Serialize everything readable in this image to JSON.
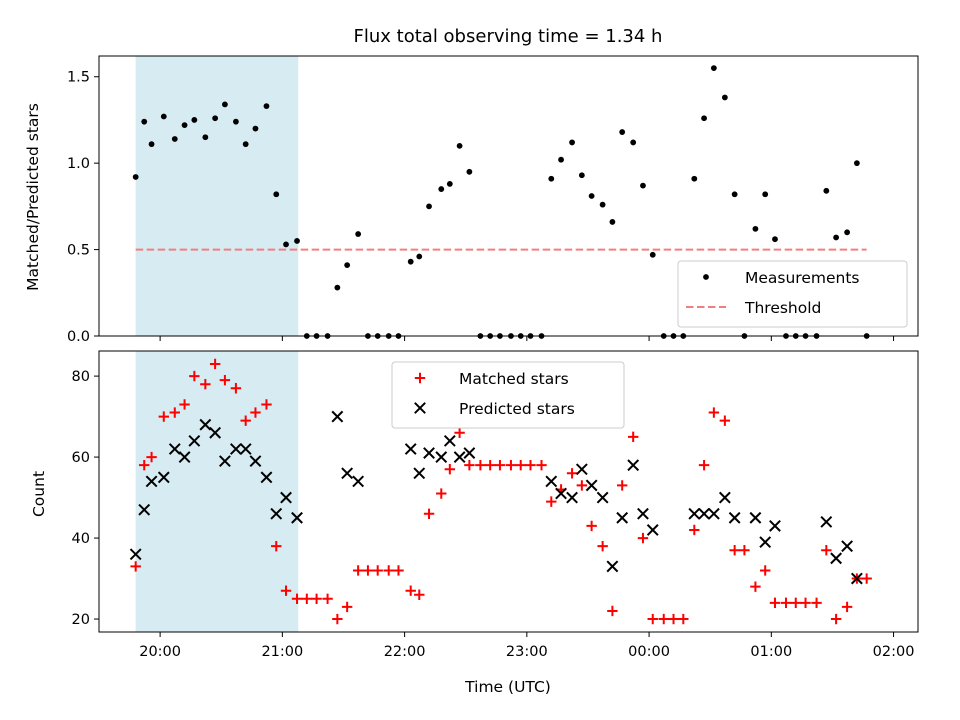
{
  "chart_data": {
    "title": "Flux total observing time = 1.34 h",
    "xlabel": "Time (UTC)",
    "x_unit": "hours UTC since 00:00 of the first night (values above 24 are after midnight)",
    "xlim": [
      19.5,
      26.2
    ],
    "xticks": [
      {
        "value": 20,
        "label": "20:00"
      },
      {
        "value": 21,
        "label": "21:00"
      },
      {
        "value": 22,
        "label": "22:00"
      },
      {
        "value": 23,
        "label": "23:00"
      },
      {
        "value": 24,
        "label": "00:00"
      },
      {
        "value": 25,
        "label": "01:00"
      },
      {
        "value": 26,
        "label": "02:00"
      }
    ],
    "highlight_span": {
      "x0": 19.8,
      "x1": 21.13,
      "color": "#add8e6"
    },
    "panels": [
      {
        "id": "ratio",
        "type": "scatter",
        "ylabel": "Matched/Predicted stars",
        "ylim": [
          0,
          1.62
        ],
        "yticks": [
          {
            "value": 0.0,
            "label": "0.0"
          },
          {
            "value": 0.5,
            "label": "0.5"
          },
          {
            "value": 1.0,
            "label": "1.0"
          },
          {
            "value": 1.5,
            "label": "1.5"
          }
        ],
        "legend_position": "lower-right",
        "series": [
          {
            "name": "Measurements",
            "marker": "dot",
            "color": "#000000",
            "points": [
              [
                19.8,
                0.92
              ],
              [
                19.87,
                1.24
              ],
              [
                19.93,
                1.11
              ],
              [
                20.03,
                1.27
              ],
              [
                20.12,
                1.14
              ],
              [
                20.2,
                1.22
              ],
              [
                20.28,
                1.25
              ],
              [
                20.37,
                1.15
              ],
              [
                20.45,
                1.26
              ],
              [
                20.53,
                1.34
              ],
              [
                20.62,
                1.24
              ],
              [
                20.7,
                1.11
              ],
              [
                20.78,
                1.2
              ],
              [
                20.87,
                1.33
              ],
              [
                20.95,
                0.82
              ],
              [
                21.03,
                0.53
              ],
              [
                21.12,
                0.55
              ],
              [
                21.2,
                0.0
              ],
              [
                21.28,
                0.0
              ],
              [
                21.37,
                0.0
              ],
              [
                21.45,
                0.28
              ],
              [
                21.53,
                0.41
              ],
              [
                21.62,
                0.59
              ],
              [
                21.7,
                0.0
              ],
              [
                21.78,
                0.0
              ],
              [
                21.87,
                0.0
              ],
              [
                21.95,
                0.0
              ],
              [
                22.05,
                0.43
              ],
              [
                22.12,
                0.46
              ],
              [
                22.2,
                0.75
              ],
              [
                22.3,
                0.85
              ],
              [
                22.37,
                0.88
              ],
              [
                22.45,
                1.1
              ],
              [
                22.53,
                0.95
              ],
              [
                22.62,
                0.0
              ],
              [
                22.7,
                0.0
              ],
              [
                22.78,
                0.0
              ],
              [
                22.87,
                0.0
              ],
              [
                22.95,
                0.0
              ],
              [
                23.03,
                0.0
              ],
              [
                23.12,
                0.0
              ],
              [
                23.2,
                0.91
              ],
              [
                23.28,
                1.02
              ],
              [
                23.37,
                1.12
              ],
              [
                23.45,
                0.93
              ],
              [
                23.53,
                0.81
              ],
              [
                23.62,
                0.76
              ],
              [
                23.7,
                0.66
              ],
              [
                23.78,
                1.18
              ],
              [
                23.87,
                1.12
              ],
              [
                23.95,
                0.87
              ],
              [
                24.03,
                0.47
              ],
              [
                24.12,
                0.0
              ],
              [
                24.2,
                0.0
              ],
              [
                24.28,
                0.0
              ],
              [
                24.37,
                0.91
              ],
              [
                24.45,
                1.26
              ],
              [
                24.53,
                1.55
              ],
              [
                24.62,
                1.38
              ],
              [
                24.7,
                0.82
              ],
              [
                24.78,
                0.0
              ],
              [
                24.87,
                0.62
              ],
              [
                24.95,
                0.82
              ],
              [
                25.03,
                0.56
              ],
              [
                25.12,
                0.0
              ],
              [
                25.2,
                0.0
              ],
              [
                25.28,
                0.0
              ],
              [
                25.37,
                0.0
              ],
              [
                25.45,
                0.84
              ],
              [
                25.53,
                0.57
              ],
              [
                25.62,
                0.6
              ],
              [
                25.7,
                1.0
              ],
              [
                25.78,
                0.0
              ]
            ]
          },
          {
            "name": "Threshold",
            "marker": "dashed-line",
            "color": "#f08080",
            "value": 0.5,
            "x_range": [
              19.8,
              25.78
            ]
          }
        ]
      },
      {
        "id": "count",
        "type": "scatter",
        "ylabel": "Count",
        "ylim": [
          16.8,
          86.2
        ],
        "yticks": [
          {
            "value": 20,
            "label": "20"
          },
          {
            "value": 40,
            "label": "40"
          },
          {
            "value": 60,
            "label": "60"
          },
          {
            "value": 80,
            "label": "80"
          }
        ],
        "legend_position": "upper-center",
        "series": [
          {
            "name": "Matched stars",
            "marker": "plus",
            "color": "#ff0000",
            "points": [
              [
                19.8,
                33
              ],
              [
                19.87,
                58
              ],
              [
                19.93,
                60
              ],
              [
                20.03,
                70
              ],
              [
                20.12,
                71
              ],
              [
                20.2,
                73
              ],
              [
                20.28,
                80
              ],
              [
                20.37,
                78
              ],
              [
                20.45,
                83
              ],
              [
                20.53,
                79
              ],
              [
                20.62,
                77
              ],
              [
                20.7,
                69
              ],
              [
                20.78,
                71
              ],
              [
                20.87,
                73
              ],
              [
                20.95,
                38
              ],
              [
                21.03,
                27
              ],
              [
                21.12,
                25
              ],
              [
                21.2,
                25
              ],
              [
                21.28,
                25
              ],
              [
                21.37,
                25
              ],
              [
                21.45,
                20
              ],
              [
                21.53,
                23
              ],
              [
                21.62,
                32
              ],
              [
                21.7,
                32
              ],
              [
                21.78,
                32
              ],
              [
                21.87,
                32
              ],
              [
                21.95,
                32
              ],
              [
                22.05,
                27
              ],
              [
                22.12,
                26
              ],
              [
                22.2,
                46
              ],
              [
                22.3,
                51
              ],
              [
                22.37,
                57
              ],
              [
                22.45,
                66
              ],
              [
                22.53,
                58
              ],
              [
                22.62,
                58
              ],
              [
                22.7,
                58
              ],
              [
                22.78,
                58
              ],
              [
                22.87,
                58
              ],
              [
                22.95,
                58
              ],
              [
                23.03,
                58
              ],
              [
                23.12,
                58
              ],
              [
                23.2,
                49
              ],
              [
                23.28,
                52
              ],
              [
                23.37,
                56
              ],
              [
                23.45,
                53
              ],
              [
                23.53,
                43
              ],
              [
                23.62,
                38
              ],
              [
                23.7,
                22
              ],
              [
                23.78,
                53
              ],
              [
                23.87,
                65
              ],
              [
                23.95,
                40
              ],
              [
                24.03,
                20
              ],
              [
                24.12,
                20
              ],
              [
                24.2,
                20
              ],
              [
                24.28,
                20
              ],
              [
                24.37,
                42
              ],
              [
                24.45,
                58
              ],
              [
                24.53,
                71
              ],
              [
                24.62,
                69
              ],
              [
                24.7,
                37
              ],
              [
                24.78,
                37
              ],
              [
                24.87,
                28
              ],
              [
                24.95,
                32
              ],
              [
                25.03,
                24
              ],
              [
                25.12,
                24
              ],
              [
                25.2,
                24
              ],
              [
                25.28,
                24
              ],
              [
                25.37,
                24
              ],
              [
                25.45,
                37
              ],
              [
                25.53,
                20
              ],
              [
                25.62,
                23
              ],
              [
                25.7,
                30
              ],
              [
                25.78,
                30
              ]
            ]
          },
          {
            "name": "Predicted stars",
            "marker": "x",
            "color": "#000000",
            "points": [
              [
                19.8,
                36
              ],
              [
                19.87,
                47
              ],
              [
                19.93,
                54
              ],
              [
                20.03,
                55
              ],
              [
                20.12,
                62
              ],
              [
                20.2,
                60
              ],
              [
                20.28,
                64
              ],
              [
                20.37,
                68
              ],
              [
                20.45,
                66
              ],
              [
                20.53,
                59
              ],
              [
                20.62,
                62
              ],
              [
                20.7,
                62
              ],
              [
                20.78,
                59
              ],
              [
                20.87,
                55
              ],
              [
                20.95,
                46
              ],
              [
                21.03,
                50
              ],
              [
                21.12,
                45
              ],
              [
                21.45,
                70
              ],
              [
                21.53,
                56
              ],
              [
                21.62,
                54
              ],
              [
                22.05,
                62
              ],
              [
                22.12,
                56
              ],
              [
                22.2,
                61
              ],
              [
                22.3,
                60
              ],
              [
                22.37,
                64
              ],
              [
                22.45,
                60
              ],
              [
                22.53,
                61
              ],
              [
                23.2,
                54
              ],
              [
                23.28,
                51
              ],
              [
                23.37,
                50
              ],
              [
                23.45,
                57
              ],
              [
                23.53,
                53
              ],
              [
                23.62,
                50
              ],
              [
                23.7,
                33
              ],
              [
                23.78,
                45
              ],
              [
                23.87,
                58
              ],
              [
                23.95,
                46
              ],
              [
                24.03,
                42
              ],
              [
                24.37,
                46
              ],
              [
                24.45,
                46
              ],
              [
                24.53,
                46
              ],
              [
                24.62,
                50
              ],
              [
                24.7,
                45
              ],
              [
                24.87,
                45
              ],
              [
                24.95,
                39
              ],
              [
                25.03,
                43
              ],
              [
                25.45,
                44
              ],
              [
                25.53,
                35
              ],
              [
                25.62,
                38
              ],
              [
                25.7,
                30
              ]
            ]
          }
        ]
      }
    ]
  }
}
